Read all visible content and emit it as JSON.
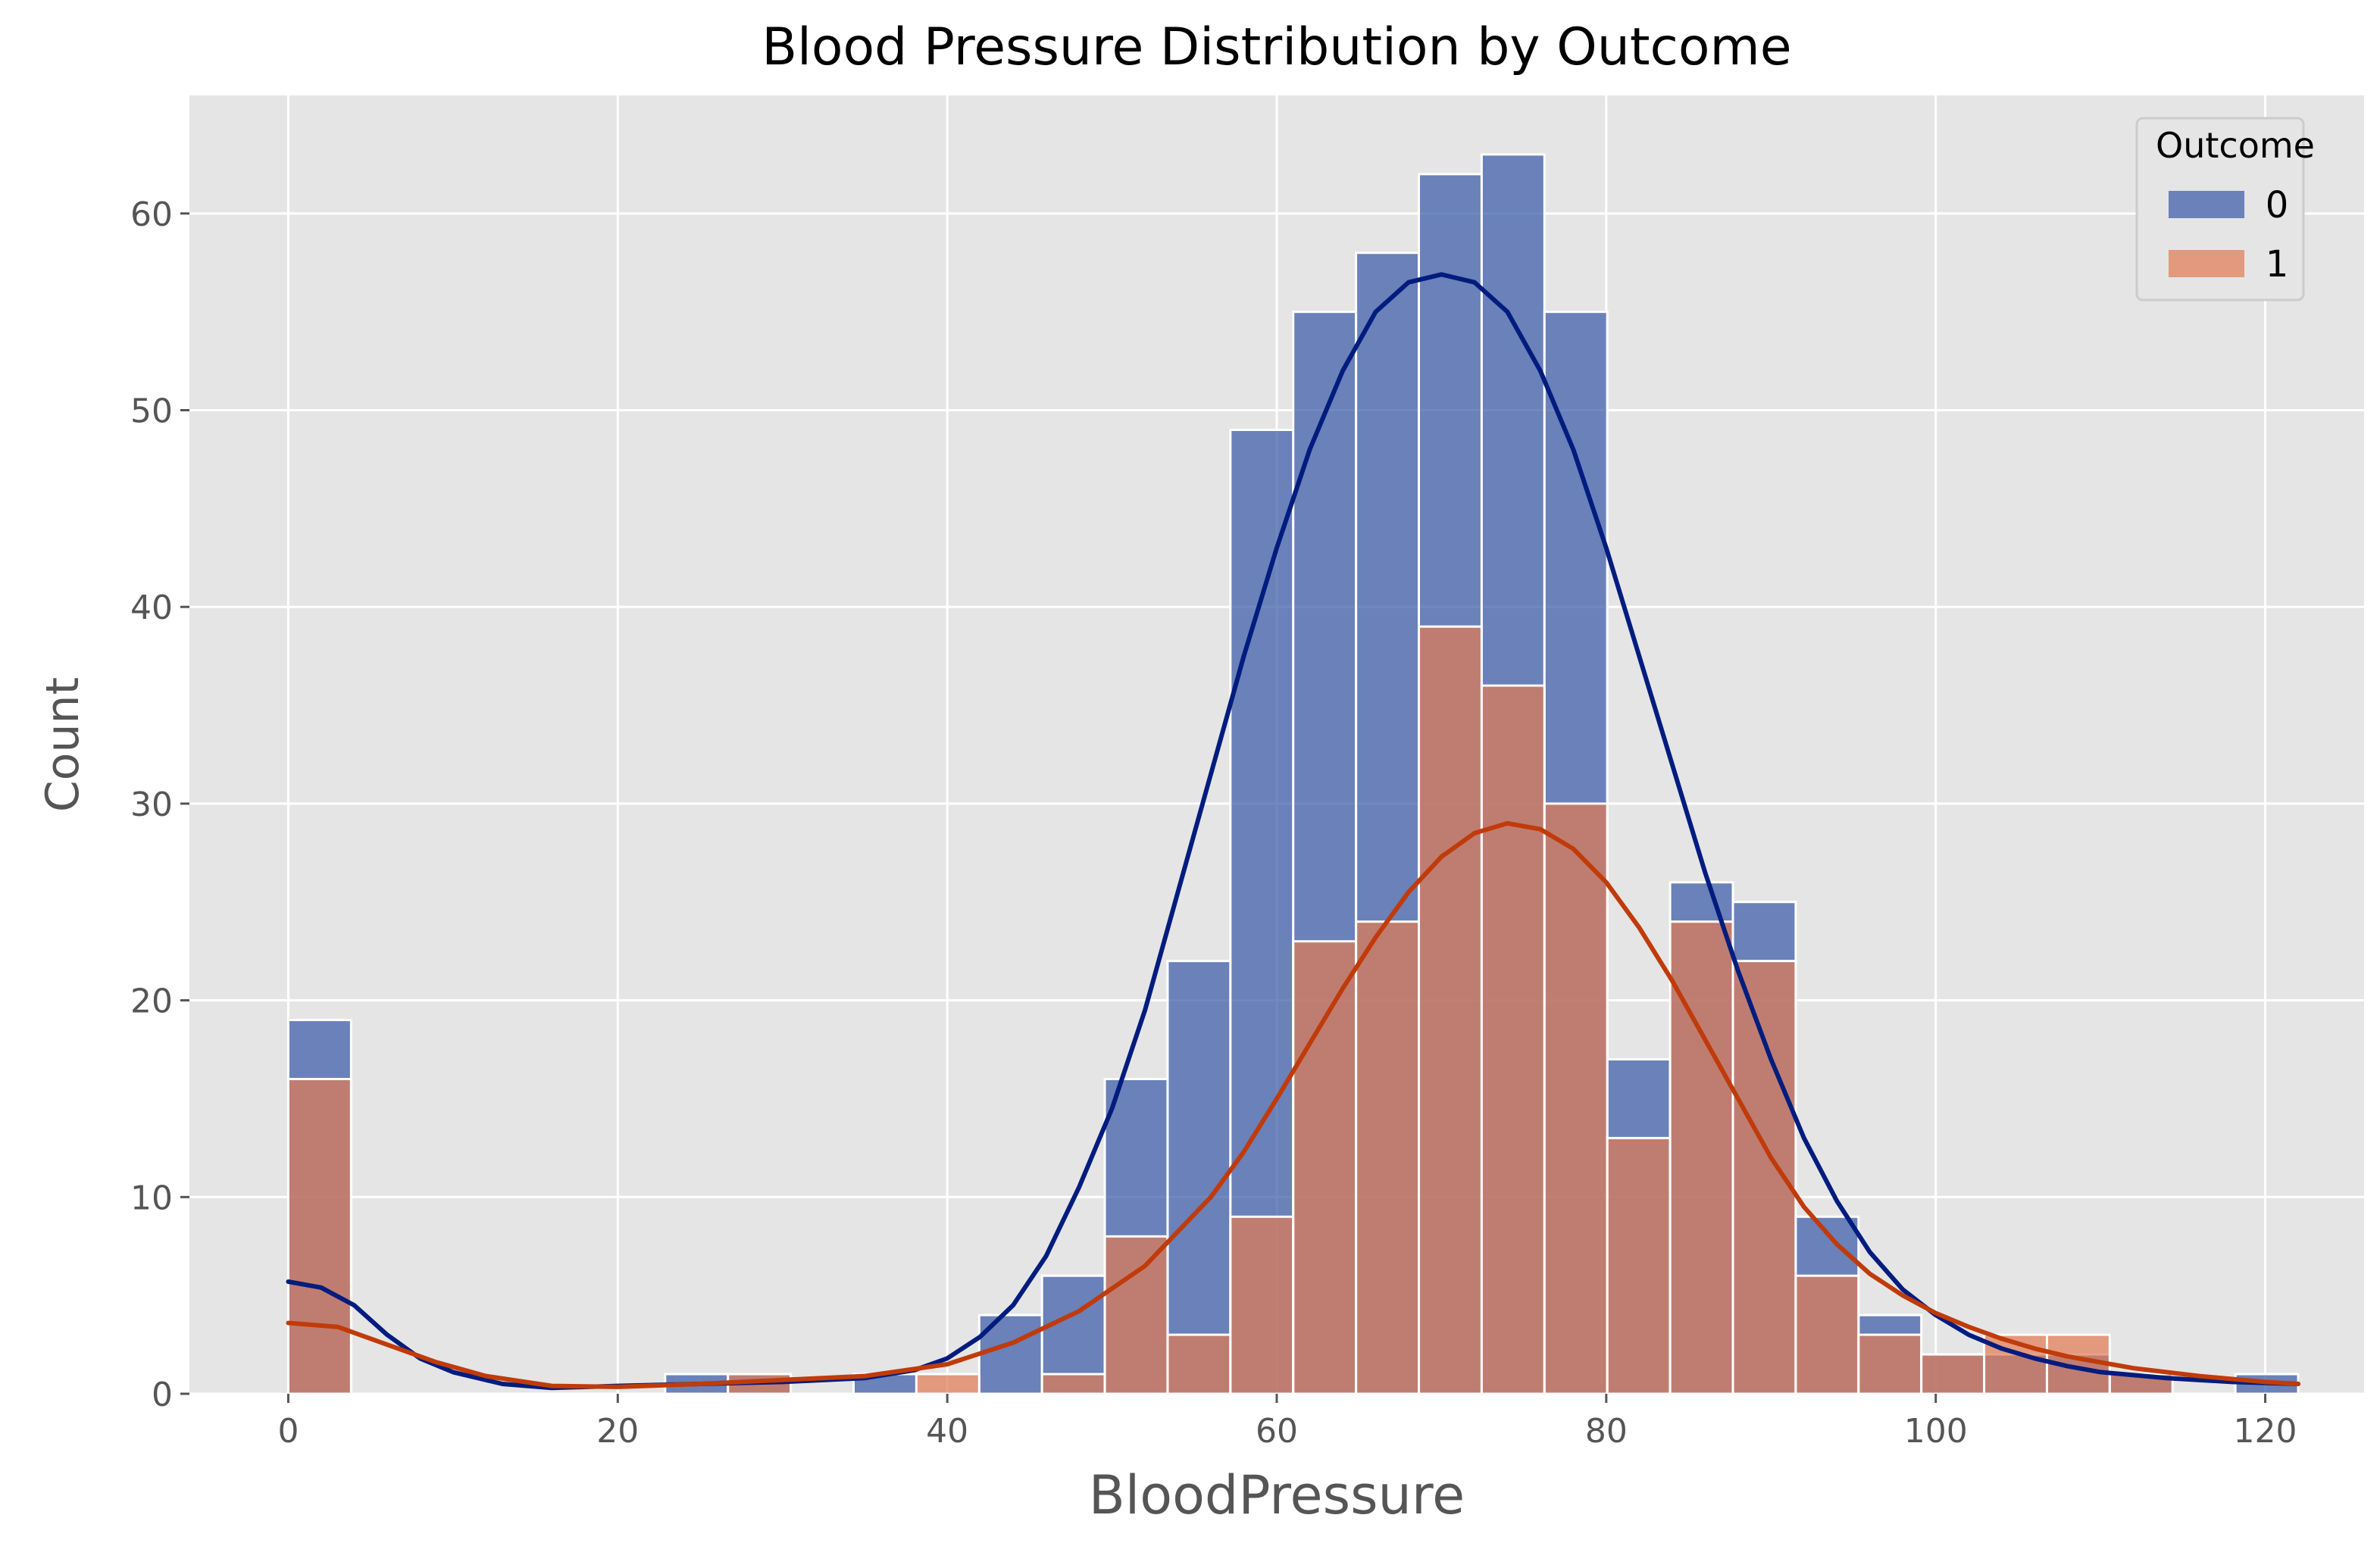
{
  "chart_data": {
    "type": "histogram",
    "title": "Blood Pressure Distribution by Outcome",
    "xlabel": "BloodPressure",
    "ylabel": "Count",
    "xlim": [
      -6,
      126
    ],
    "ylim": [
      0,
      66
    ],
    "x_ticks": [
      0,
      20,
      40,
      60,
      80,
      100,
      120
    ],
    "y_ticks": [
      0,
      10,
      20,
      30,
      40,
      50,
      60
    ],
    "grid": true,
    "legend": {
      "title": "Outcome",
      "placement": "top-right"
    },
    "bin_edges": [
      0,
      3.8125,
      7.625,
      11.4375,
      15.25,
      19.0625,
      22.875,
      26.6875,
      30.5,
      34.3125,
      38.125,
      41.9375,
      45.75,
      49.5625,
      53.375,
      57.1875,
      61.0,
      64.8125,
      68.625,
      72.4375,
      76.25,
      80.0625,
      83.875,
      87.6875,
      91.5,
      95.3125,
      99.125,
      102.9375,
      106.75,
      110.5625,
      114.375,
      118.1875,
      122.0
    ],
    "series": [
      {
        "name": "0",
        "color": "#3a5aa8",
        "kde_color": "#001c7f",
        "counts": [
          19,
          0,
          0,
          0,
          0,
          0,
          1,
          1,
          0,
          1,
          0,
          4,
          6,
          16,
          22,
          49,
          55,
          58,
          62,
          63,
          55,
          17,
          26,
          25,
          9,
          4,
          2,
          2,
          2,
          1,
          0,
          1
        ],
        "kde_curve": [
          [
            0,
            5.7
          ],
          [
            2,
            5.4
          ],
          [
            4,
            4.5
          ],
          [
            6,
            3.0
          ],
          [
            8,
            1.8
          ],
          [
            10,
            1.1
          ],
          [
            13,
            0.5
          ],
          [
            16,
            0.3
          ],
          [
            20,
            0.4
          ],
          [
            25,
            0.5
          ],
          [
            30,
            0.6
          ],
          [
            35,
            0.8
          ],
          [
            38,
            1.2
          ],
          [
            40,
            1.8
          ],
          [
            42,
            2.9
          ],
          [
            44,
            4.5
          ],
          [
            46,
            7.0
          ],
          [
            48,
            10.5
          ],
          [
            50,
            14.5
          ],
          [
            52,
            19.5
          ],
          [
            54,
            25.5
          ],
          [
            56,
            31.5
          ],
          [
            58,
            37.5
          ],
          [
            60,
            43.0
          ],
          [
            62,
            48.0
          ],
          [
            64,
            52.0
          ],
          [
            66,
            55.0
          ],
          [
            68,
            56.5
          ],
          [
            70,
            56.9
          ],
          [
            72,
            56.5
          ],
          [
            74,
            55.0
          ],
          [
            76,
            52.0
          ],
          [
            78,
            48.0
          ],
          [
            80,
            43.0
          ],
          [
            82,
            37.5
          ],
          [
            84,
            32.0
          ],
          [
            86,
            26.5
          ],
          [
            88,
            21.5
          ],
          [
            90,
            17.0
          ],
          [
            92,
            13.0
          ],
          [
            94,
            9.8
          ],
          [
            96,
            7.2
          ],
          [
            98,
            5.3
          ],
          [
            100,
            4.0
          ],
          [
            102,
            3.0
          ],
          [
            104,
            2.3
          ],
          [
            106,
            1.8
          ],
          [
            108,
            1.4
          ],
          [
            110,
            1.1
          ],
          [
            114,
            0.8
          ],
          [
            118,
            0.6
          ],
          [
            122,
            0.5
          ]
        ]
      },
      {
        "name": "1",
        "color": "#e07b54",
        "kde_color": "#c03b0a",
        "counts": [
          16,
          0,
          0,
          0,
          0,
          0,
          0,
          1,
          0,
          0,
          1,
          0,
          1,
          8,
          3,
          9,
          23,
          24,
          39,
          36,
          30,
          13,
          24,
          22,
          6,
          3,
          2,
          3,
          3,
          1,
          0,
          0
        ],
        "kde_curve": [
          [
            0,
            3.6
          ],
          [
            3,
            3.4
          ],
          [
            6,
            2.5
          ],
          [
            9,
            1.6
          ],
          [
            12,
            0.9
          ],
          [
            16,
            0.4
          ],
          [
            20,
            0.35
          ],
          [
            25,
            0.5
          ],
          [
            30,
            0.7
          ],
          [
            35,
            0.9
          ],
          [
            40,
            1.5
          ],
          [
            44,
            2.6
          ],
          [
            48,
            4.2
          ],
          [
            52,
            6.5
          ],
          [
            56,
            10.0
          ],
          [
            58,
            12.3
          ],
          [
            60,
            15.0
          ],
          [
            62,
            17.8
          ],
          [
            64,
            20.6
          ],
          [
            66,
            23.2
          ],
          [
            68,
            25.5
          ],
          [
            70,
            27.3
          ],
          [
            72,
            28.5
          ],
          [
            74,
            29.0
          ],
          [
            76,
            28.7
          ],
          [
            78,
            27.7
          ],
          [
            80,
            26.0
          ],
          [
            82,
            23.7
          ],
          [
            84,
            21.0
          ],
          [
            86,
            18.0
          ],
          [
            88,
            15.0
          ],
          [
            90,
            12.0
          ],
          [
            92,
            9.5
          ],
          [
            94,
            7.6
          ],
          [
            96,
            6.1
          ],
          [
            98,
            5.0
          ],
          [
            100,
            4.1
          ],
          [
            102,
            3.4
          ],
          [
            104,
            2.8
          ],
          [
            106,
            2.3
          ],
          [
            108,
            1.9
          ],
          [
            112,
            1.3
          ],
          [
            116,
            0.9
          ],
          [
            120,
            0.6
          ],
          [
            122,
            0.5
          ]
        ]
      }
    ]
  }
}
